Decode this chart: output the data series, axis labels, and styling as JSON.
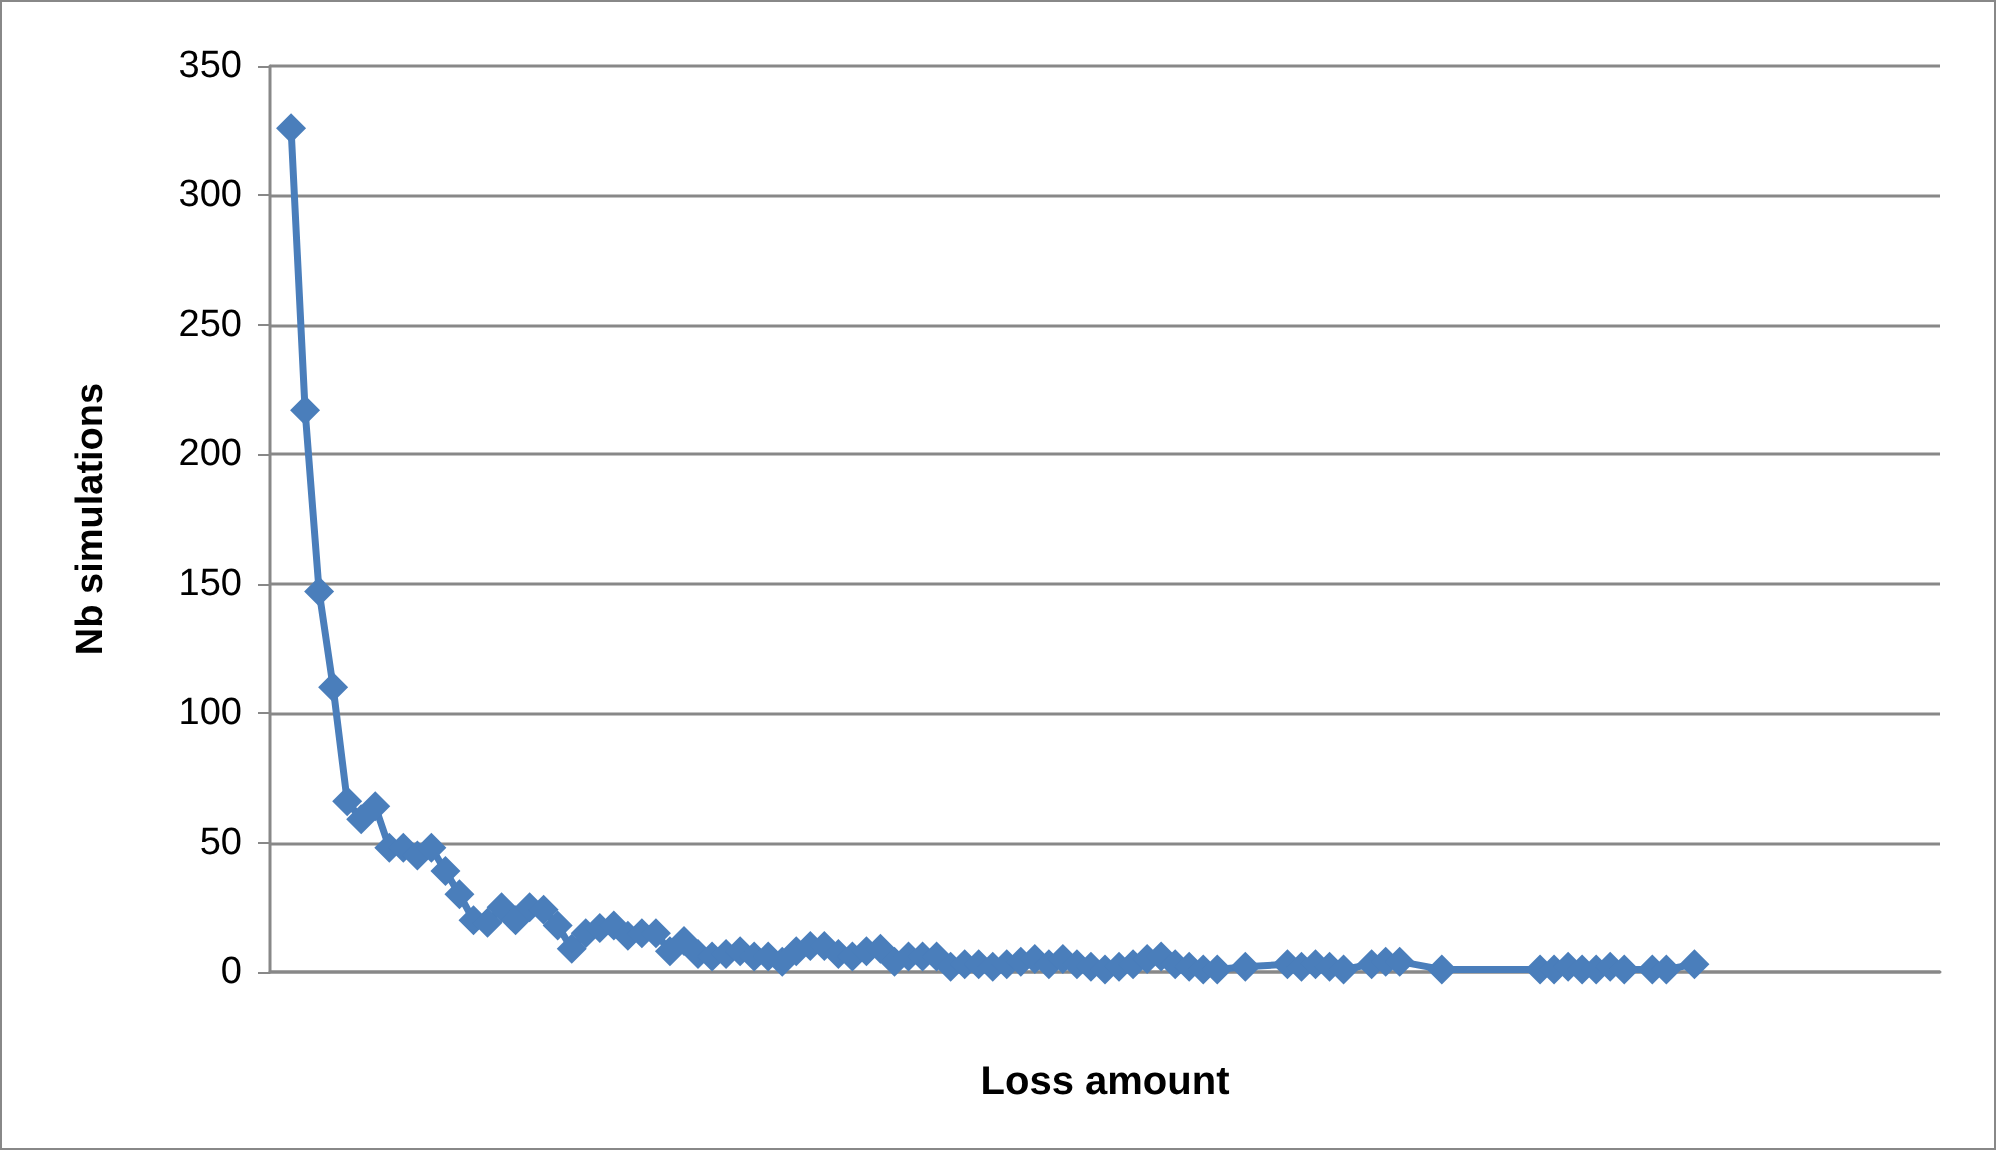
{
  "chart_data": {
    "type": "line",
    "xlabel": "Loss amount",
    "ylabel": "Nb simulations",
    "categories": [
      null,
      null,
      null,
      null,
      null,
      null,
      null,
      null,
      null,
      null,
      null,
      null,
      null,
      null,
      null,
      null,
      null,
      null,
      null,
      null,
      null,
      null,
      null,
      null,
      null,
      null,
      null,
      null,
      null,
      null,
      null,
      null,
      null,
      null,
      null,
      null,
      null,
      null,
      null,
      null,
      null,
      null,
      null,
      null,
      null,
      null,
      null,
      null,
      null,
      null,
      null,
      null,
      null,
      null,
      null,
      null,
      null,
      null,
      null,
      null,
      null,
      null,
      null,
      null,
      null,
      null,
      null,
      null,
      null,
      null,
      null,
      null,
      null,
      null,
      null,
      null,
      null,
      null,
      null,
      null,
      null,
      null,
      null,
      null,
      null,
      null,
      null,
      null,
      null,
      null,
      null,
      null,
      null,
      null,
      null,
      null,
      null,
      null,
      null,
      null,
      null,
      null,
      null,
      null,
      null,
      null,
      null,
      null,
      null,
      null,
      null,
      null,
      null,
      null,
      null,
      null,
      null,
      null,
      null
    ],
    "series": [
      {
        "color": "#4a7ebb",
        "values": [
          null,
          326,
          217,
          147,
          110,
          66,
          59,
          64,
          48,
          48,
          45,
          48,
          39,
          30,
          20,
          19,
          25,
          20,
          25,
          24,
          18,
          9,
          15,
          17,
          18,
          14,
          15,
          15,
          8,
          12,
          7,
          6,
          7,
          8,
          6,
          6,
          4,
          8,
          10,
          10,
          7,
          6,
          8,
          9,
          4,
          6,
          6,
          6,
          2,
          3,
          3,
          2,
          3,
          4,
          5,
          3,
          5,
          3,
          2,
          1,
          2,
          3,
          5,
          6,
          3,
          2,
          1,
          1,
          null,
          2,
          null,
          null,
          3,
          2,
          3,
          2,
          1,
          null,
          3,
          4,
          4,
          null,
          null,
          1,
          null,
          null,
          null,
          null,
          null,
          null,
          1,
          1,
          2,
          1,
          1,
          2,
          1,
          null,
          1,
          1,
          null,
          3,
          null,
          null,
          null,
          null,
          null,
          null,
          null,
          null,
          null,
          null,
          null,
          null,
          null,
          null,
          null,
          null,
          null
        ]
      }
    ],
    "ylim": [
      0,
      350
    ],
    "yticks": [
      0,
      50,
      100,
      150,
      200,
      250,
      300,
      350
    ],
    "grid": "y",
    "marker": "diamond",
    "line_style": "solid",
    "tick_labels": "y"
  }
}
